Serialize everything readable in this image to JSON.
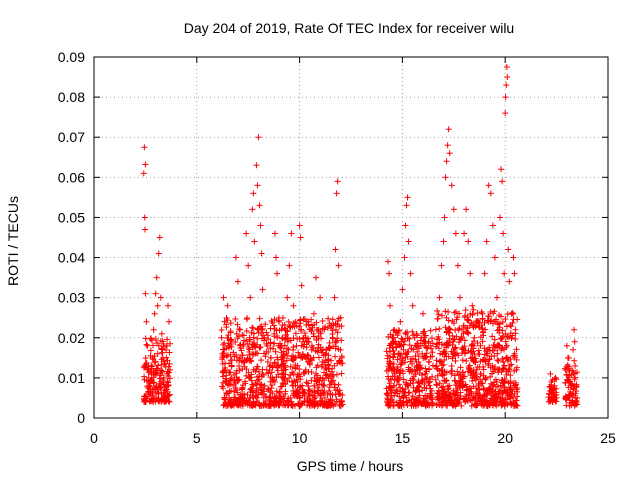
{
  "chart_data": {
    "type": "scatter",
    "title": "Day 204 of 2019, Rate Of TEC Index for receiver wilu",
    "xlabel": "GPS time / hours",
    "ylabel": "ROTI / TECUs",
    "xlim": [
      0,
      25
    ],
    "ylim": [
      0,
      0.09
    ],
    "x_ticks": [
      0,
      5,
      10,
      15,
      20,
      25
    ],
    "x_tick_labels": [
      "0",
      "5",
      "10",
      "15",
      "20",
      "25"
    ],
    "y_ticks": [
      0,
      0.01,
      0.02,
      0.03,
      0.04,
      0.05,
      0.06,
      0.07,
      0.08,
      0.09
    ],
    "y_tick_labels": [
      "0",
      "0.01",
      "0.02",
      "0.03",
      "0.04",
      "0.05",
      "0.06",
      "0.07",
      "0.08",
      "0.09"
    ],
    "grid": true,
    "marker": "+",
    "series": [
      {
        "color": "#ff0000",
        "points": [
          [
            2.45,
            0.0675
          ],
          [
            2.5,
            0.0632
          ],
          [
            2.42,
            0.061
          ],
          [
            2.47,
            0.05
          ],
          [
            2.48,
            0.047
          ],
          [
            2.5,
            0.031
          ],
          [
            2.55,
            0.024
          ],
          [
            2.6,
            0.018
          ],
          [
            2.62,
            0.012
          ],
          [
            2.7,
            0.008
          ],
          [
            2.75,
            0.006
          ],
          [
            2.8,
            0.011
          ],
          [
            2.85,
            0.015
          ],
          [
            2.9,
            0.022
          ],
          [
            2.95,
            0.026
          ],
          [
            3.0,
            0.031
          ],
          [
            3.05,
            0.035
          ],
          [
            3.1,
            0.028
          ],
          [
            3.15,
            0.041
          ],
          [
            3.2,
            0.045
          ],
          [
            3.25,
            0.03
          ],
          [
            3.3,
            0.021
          ],
          [
            3.35,
            0.015
          ],
          [
            3.4,
            0.01
          ],
          [
            3.5,
            0.007
          ],
          [
            3.55,
            0.018
          ],
          [
            3.6,
            0.028
          ],
          [
            3.65,
            0.024
          ],
          [
            3.7,
            0.012
          ],
          [
            2.55,
            0.005
          ],
          [
            2.65,
            0.009
          ],
          [
            2.78,
            0.013
          ],
          [
            2.88,
            0.004
          ],
          [
            3.08,
            0.007
          ],
          [
            3.28,
            0.006
          ],
          [
            6.3,
            0.03
          ],
          [
            6.35,
            0.024
          ],
          [
            6.4,
            0.012
          ],
          [
            6.45,
            0.006
          ],
          [
            6.5,
            0.028
          ],
          [
            6.6,
            0.018
          ],
          [
            6.7,
            0.01
          ],
          [
            6.8,
            0.008
          ],
          [
            6.9,
            0.04
          ],
          [
            7.0,
            0.034
          ],
          [
            7.1,
            0.022
          ],
          [
            7.2,
            0.014
          ],
          [
            7.3,
            0.006
          ],
          [
            7.4,
            0.046
          ],
          [
            7.5,
            0.038
          ],
          [
            7.6,
            0.03
          ],
          [
            7.7,
            0.052
          ],
          [
            7.75,
            0.056
          ],
          [
            7.8,
            0.044
          ],
          [
            7.9,
            0.063
          ],
          [
            7.95,
            0.058
          ],
          [
            8.0,
            0.07
          ],
          [
            8.05,
            0.053
          ],
          [
            8.1,
            0.048
          ],
          [
            8.15,
            0.041
          ],
          [
            8.2,
            0.032
          ],
          [
            8.3,
            0.02
          ],
          [
            8.4,
            0.012
          ],
          [
            8.5,
            0.007
          ],
          [
            8.6,
            0.015
          ],
          [
            8.8,
            0.046
          ],
          [
            8.85,
            0.04
          ],
          [
            8.9,
            0.036
          ],
          [
            9.0,
            0.024
          ],
          [
            9.1,
            0.018
          ],
          [
            9.2,
            0.01
          ],
          [
            9.3,
            0.006
          ],
          [
            9.4,
            0.03
          ],
          [
            9.5,
            0.038
          ],
          [
            9.6,
            0.046
          ],
          [
            9.7,
            0.028
          ],
          [
            9.8,
            0.015
          ],
          [
            9.9,
            0.009
          ],
          [
            10.0,
            0.048
          ],
          [
            10.05,
            0.045
          ],
          [
            10.1,
            0.033
          ],
          [
            10.2,
            0.02
          ],
          [
            10.3,
            0.012
          ],
          [
            10.4,
            0.005
          ],
          [
            10.5,
            0.003
          ],
          [
            10.6,
            0.018
          ],
          [
            10.7,
            0.026
          ],
          [
            10.8,
            0.035
          ],
          [
            10.9,
            0.022
          ],
          [
            11.0,
            0.03
          ],
          [
            11.1,
            0.014
          ],
          [
            11.2,
            0.008
          ],
          [
            11.3,
            0.004
          ],
          [
            11.4,
            0.01
          ],
          [
            11.5,
            0.006
          ],
          [
            11.6,
            0.02
          ],
          [
            11.7,
            0.03
          ],
          [
            11.75,
            0.042
          ],
          [
            11.8,
            0.056
          ],
          [
            11.85,
            0.059
          ],
          [
            11.9,
            0.038
          ],
          [
            12.0,
            0.025
          ],
          [
            12.05,
            0.015
          ],
          [
            6.55,
            0.004
          ],
          [
            7.05,
            0.005
          ],
          [
            7.55,
            0.004
          ],
          [
            8.55,
            0.005
          ],
          [
            9.05,
            0.004
          ],
          [
            9.55,
            0.005
          ],
          [
            10.25,
            0.004
          ],
          [
            14.3,
            0.039
          ],
          [
            14.35,
            0.036
          ],
          [
            14.4,
            0.028
          ],
          [
            14.5,
            0.02
          ],
          [
            14.6,
            0.012
          ],
          [
            14.7,
            0.007
          ],
          [
            14.8,
            0.016
          ],
          [
            14.9,
            0.024
          ],
          [
            15.0,
            0.032
          ],
          [
            15.1,
            0.04
          ],
          [
            15.15,
            0.048
          ],
          [
            15.2,
            0.053
          ],
          [
            15.25,
            0.055
          ],
          [
            15.3,
            0.044
          ],
          [
            15.4,
            0.036
          ],
          [
            15.5,
            0.028
          ],
          [
            15.6,
            0.02
          ],
          [
            15.7,
            0.013
          ],
          [
            15.8,
            0.008
          ],
          [
            15.9,
            0.018
          ],
          [
            16.0,
            0.026
          ],
          [
            16.1,
            0.015
          ],
          [
            16.2,
            0.01
          ],
          [
            16.4,
            0.005
          ],
          [
            14.55,
            0.004
          ],
          [
            15.05,
            0.005
          ],
          [
            15.55,
            0.004
          ],
          [
            16.05,
            0.004
          ],
          [
            16.8,
            0.03
          ],
          [
            16.9,
            0.038
          ],
          [
            17.0,
            0.044
          ],
          [
            17.05,
            0.05
          ],
          [
            17.1,
            0.06
          ],
          [
            17.15,
            0.064
          ],
          [
            17.2,
            0.068
          ],
          [
            17.25,
            0.072
          ],
          [
            17.3,
            0.066
          ],
          [
            17.4,
            0.058
          ],
          [
            17.5,
            0.052
          ],
          [
            17.6,
            0.046
          ],
          [
            17.7,
            0.038
          ],
          [
            17.8,
            0.03
          ],
          [
            17.9,
            0.022
          ],
          [
            18.0,
            0.046
          ],
          [
            18.1,
            0.052
          ],
          [
            18.2,
            0.044
          ],
          [
            18.3,
            0.036
          ],
          [
            18.4,
            0.028
          ],
          [
            18.5,
            0.02
          ],
          [
            18.6,
            0.012
          ],
          [
            18.7,
            0.008
          ],
          [
            18.8,
            0.018
          ],
          [
            18.9,
            0.026
          ],
          [
            19.0,
            0.036
          ],
          [
            19.1,
            0.044
          ],
          [
            19.2,
            0.058
          ],
          [
            19.3,
            0.056
          ],
          [
            19.4,
            0.048
          ],
          [
            19.5,
            0.04
          ],
          [
            19.6,
            0.03
          ],
          [
            19.7,
            0.022
          ],
          [
            19.75,
            0.05
          ],
          [
            19.8,
            0.062
          ],
          [
            19.85,
            0.059
          ],
          [
            19.9,
            0.046
          ],
          [
            19.95,
            0.036
          ],
          [
            20.0,
            0.076
          ],
          [
            20.02,
            0.08
          ],
          [
            20.05,
            0.083
          ],
          [
            20.08,
            0.0875
          ],
          [
            20.1,
            0.085
          ],
          [
            20.15,
            0.042
          ],
          [
            20.2,
            0.034
          ],
          [
            20.3,
            0.026
          ],
          [
            20.4,
            0.04
          ],
          [
            20.45,
            0.036
          ],
          [
            20.5,
            0.022
          ],
          [
            20.55,
            0.012
          ],
          [
            17.05,
            0.005
          ],
          [
            17.55,
            0.006
          ],
          [
            18.05,
            0.004
          ],
          [
            18.55,
            0.005
          ],
          [
            19.05,
            0.004
          ],
          [
            19.55,
            0.005
          ],
          [
            20.25,
            0.004
          ],
          [
            20.45,
            0.006
          ],
          [
            22.2,
            0.011
          ],
          [
            22.25,
            0.009
          ],
          [
            22.3,
            0.007
          ],
          [
            22.35,
            0.005
          ],
          [
            22.4,
            0.008
          ],
          [
            22.45,
            0.01
          ],
          [
            23.0,
            0.018
          ],
          [
            23.05,
            0.015
          ],
          [
            23.1,
            0.012
          ],
          [
            23.15,
            0.009
          ],
          [
            23.2,
            0.006
          ],
          [
            23.25,
            0.004
          ],
          [
            23.3,
            0.017
          ],
          [
            23.35,
            0.022
          ],
          [
            23.38,
            0.019
          ],
          [
            23.4,
            0.013
          ],
          [
            23.45,
            0.008
          ],
          [
            23.5,
            0.005
          ]
        ],
        "bands": [
          {
            "x": [
              2.4,
              3.7
            ],
            "y": [
              0.004,
              0.02
            ],
            "n": 180,
            "seed": 11
          },
          {
            "x": [
              6.2,
              12.1
            ],
            "y": [
              0.003,
              0.025
            ],
            "n": 900,
            "seed": 23
          },
          {
            "x": [
              14.2,
              16.5
            ],
            "y": [
              0.003,
              0.022
            ],
            "n": 360,
            "seed": 37
          },
          {
            "x": [
              16.6,
              20.6
            ],
            "y": [
              0.003,
              0.027
            ],
            "n": 700,
            "seed": 53
          },
          {
            "x": [
              22.1,
              22.5
            ],
            "y": [
              0.004,
              0.01
            ],
            "n": 35,
            "seed": 71
          },
          {
            "x": [
              22.9,
              23.5
            ],
            "y": [
              0.003,
              0.015
            ],
            "n": 70,
            "seed": 89
          }
        ]
      }
    ]
  }
}
